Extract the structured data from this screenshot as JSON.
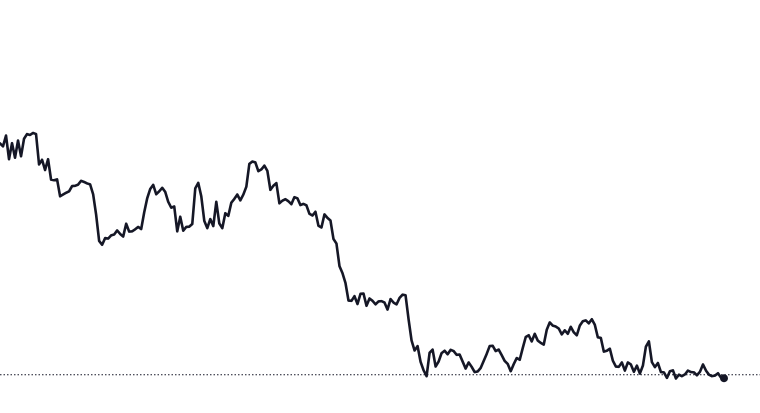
{
  "chart_data": {
    "type": "line",
    "title": "",
    "xlabel": "",
    "ylabel": "",
    "grid": false,
    "legend": "none",
    "x_range": [
      0,
      241
    ],
    "y_range": [
      0,
      100
    ],
    "colors": {
      "line": "#151726",
      "baseline": "#151726",
      "background": "#ffffff"
    },
    "reference_line": {
      "value": 2.5,
      "style": "dotted"
    },
    "series": [
      {
        "values": [
          81.7,
          80.7,
          84.4,
          76.3,
          81.8,
          76.8,
          82.7,
          77.3,
          83.3,
          84.9,
          84.6,
          85.3,
          84.9,
          74.5,
          76.1,
          72.6,
          76.3,
          69.3,
          69.1,
          69.4,
          63.6,
          64.2,
          64.8,
          65.3,
          67.1,
          67.2,
          67.6,
          68.9,
          68.5,
          68.0,
          67.7,
          64.3,
          57.3,
          48.3,
          47.0,
          49.3,
          49.1,
          50.2,
          50.5,
          51.9,
          50.7,
          49.8,
          54.2,
          51.5,
          51.6,
          52.3,
          53.1,
          52.4,
          58.1,
          62.9,
          66.1,
          67.5,
          64.3,
          65.3,
          66.5,
          65.1,
          61.7,
          59.7,
          60.1,
          51.6,
          56.6,
          51.8,
          53.1,
          53.2,
          54.1,
          66.3,
          68.2,
          63.6,
          55.2,
          52.7,
          55.8,
          53.4,
          61.7,
          54.3,
          52.7,
          57.8,
          56.9,
          61.4,
          62.7,
          64.2,
          62.2,
          64.2,
          66.9,
          74.7,
          75.5,
          75.2,
          72.2,
          72.8,
          74.1,
          72.3,
          65.8,
          67.2,
          68.1,
          61.2,
          62.1,
          62.6,
          61.9,
          60.9,
          63.3,
          62.9,
          60.6,
          61.0,
          60.5,
          57.6,
          57.0,
          58.3,
          53.5,
          52.9,
          57.4,
          56.2,
          55.3,
          49.0,
          47.4,
          39.7,
          37.3,
          33.9,
          27.9,
          27.8,
          29.4,
          26.7,
          30.2,
          30.3,
          26.1,
          28.6,
          27.8,
          26.6,
          27.6,
          27.7,
          27.2,
          24.8,
          28.4,
          27.2,
          26.6,
          28.8,
          29.9,
          29.7,
          21.5,
          14.2,
          10.8,
          12.3,
          6.9,
          4.0,
          2.0,
          10.0,
          11.1,
          5.3,
          7.0,
          9.9,
          10.7,
          9.5,
          11.0,
          10.6,
          9.3,
          9.4,
          7.0,
          4.6,
          6.7,
          5.2,
          3.4,
          3.6,
          4.8,
          7.2,
          9.6,
          12.3,
          12.4,
          10.6,
          11.1,
          9.2,
          7.2,
          6.2,
          3.7,
          6.1,
          8.2,
          7.6,
          11.6,
          15.4,
          16.0,
          13.9,
          16.5,
          14.2,
          13.4,
          12.8,
          17.9,
          20.4,
          19.3,
          19.0,
          18.3,
          16.3,
          17.7,
          16.5,
          18.9,
          17.0,
          16.0,
          19.3,
          20.8,
          21.1,
          20.1,
          21.5,
          19.6,
          15.3,
          15.1,
          10.4,
          10.7,
          11.4,
          7.3,
          5.3,
          5.2,
          6.7,
          3.9,
          6.7,
          6.0,
          3.5,
          5.6,
          2.9,
          5.6,
          12.1,
          13.9,
          6.8,
          5.1,
          6.5,
          3.4,
          3.3,
          1.4,
          3.7,
          4.0,
          1.2,
          2.5,
          2.0,
          2.6,
          3.9,
          3.4,
          3.3,
          2.3,
          3.5,
          6.0,
          3.9,
          2.5,
          2.0,
          2.2,
          3.0,
          1.5,
          1.3
        ]
      }
    ]
  }
}
